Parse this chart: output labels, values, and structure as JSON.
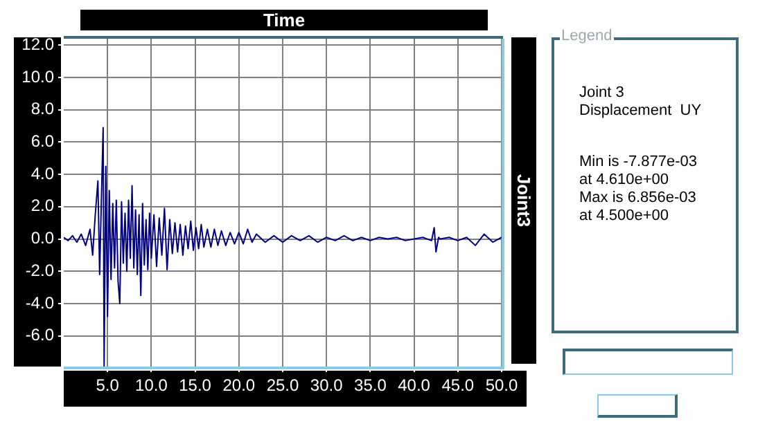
{
  "chart_data": {
    "type": "line",
    "xlabel": "Time",
    "ylabel": "Joint3",
    "xlim": [
      0,
      50
    ],
    "ylim": [
      -7.9,
      12.4
    ],
    "xticks": [
      {
        "value": 5,
        "label": "5.0"
      },
      {
        "value": 10,
        "label": "10.0"
      },
      {
        "value": 15,
        "label": "15.0"
      },
      {
        "value": 20,
        "label": "20.0"
      },
      {
        "value": 25,
        "label": "25.0"
      },
      {
        "value": 30,
        "label": "30.0"
      },
      {
        "value": 35,
        "label": "35.0"
      },
      {
        "value": 40,
        "label": "40.0"
      },
      {
        "value": 45,
        "label": "45.0"
      },
      {
        "value": 50,
        "label": "50.0"
      }
    ],
    "yticks": [
      {
        "value": 12,
        "label": "12.0"
      },
      {
        "value": 10,
        "label": "10.0"
      },
      {
        "value": 8,
        "label": "8.0"
      },
      {
        "value": 6,
        "label": "6.0"
      },
      {
        "value": 4,
        "label": "4.0"
      },
      {
        "value": 2,
        "label": "2.0"
      },
      {
        "value": 0,
        "label": "0.0"
      },
      {
        "value": -2,
        "label": "-2.0"
      },
      {
        "value": -4,
        "label": "-4.0"
      },
      {
        "value": -6,
        "label": "-6.0"
      }
    ],
    "grid": true,
    "marker": "none",
    "line_style": "solid",
    "legend": false,
    "annotations": [
      "Legend",
      "Joint 3",
      "Displacement  UY",
      "Min is -7.877e-03",
      "at 4.610e+00",
      "Max is 6.856e-03",
      "at 4.500e+00"
    ],
    "series": [
      {
        "color": "#000080",
        "x": [
          0,
          0.5,
          1,
          1.5,
          2,
          2.5,
          3,
          3.3,
          3.6,
          3.9,
          4.1,
          4.3,
          4.5,
          4.61,
          4.8,
          5.0,
          5.2,
          5.4,
          5.6,
          5.8,
          6.0,
          6.2,
          6.4,
          6.6,
          6.8,
          7.0,
          7.2,
          7.4,
          7.6,
          7.8,
          8.0,
          8.2,
          8.4,
          8.6,
          8.8,
          9.0,
          9.2,
          9.4,
          9.6,
          9.8,
          10.0,
          10.3,
          10.6,
          10.9,
          11.2,
          11.5,
          11.8,
          12.1,
          12.4,
          12.7,
          13.0,
          13.3,
          13.6,
          13.9,
          14.2,
          14.5,
          14.8,
          15.1,
          15.4,
          15.7,
          16.0,
          16.4,
          16.8,
          17.2,
          17.6,
          18.0,
          18.5,
          19,
          19.5,
          20,
          20.5,
          21,
          21.5,
          22,
          23,
          24,
          25,
          26,
          27,
          28,
          29,
          30,
          31,
          32,
          33,
          34,
          35,
          36,
          37,
          38,
          39,
          40,
          41,
          42,
          42.3,
          42.5,
          42.8,
          43,
          44,
          45,
          46,
          47,
          48,
          49,
          50
        ],
        "values": [
          0.1,
          -0.1,
          0.2,
          -0.2,
          0.3,
          -0.4,
          0.6,
          -1.0,
          1.5,
          3.6,
          -2.2,
          2.5,
          6.9,
          -7.9,
          4.5,
          -4.8,
          3.0,
          -2.5,
          2.2,
          -1.8,
          2.4,
          -2.6,
          -4.0,
          2.3,
          -1.5,
          1.6,
          -2.0,
          2.4,
          -1.2,
          3.3,
          -1.8,
          1.8,
          -2.2,
          1.5,
          -3.5,
          2.2,
          -1.6,
          1.2,
          -1.9,
          1.6,
          -1.2,
          1.5,
          -1.7,
          1.3,
          -1.0,
          1.9,
          -1.9,
          1.2,
          -0.9,
          1.0,
          -0.8,
          0.9,
          -1.0,
          0.8,
          -0.6,
          1.1,
          -0.7,
          0.7,
          -0.6,
          0.9,
          -0.5,
          0.6,
          -0.5,
          0.6,
          -0.4,
          0.5,
          -0.4,
          0.4,
          -0.3,
          0.4,
          -0.3,
          0.6,
          -0.2,
          0.3,
          -0.2,
          0.2,
          -0.2,
          0.2,
          -0.1,
          0.2,
          -0.2,
          0.1,
          -0.1,
          0.2,
          -0.1,
          0.1,
          -0.1,
          0.1,
          0.0,
          0.1,
          -0.1,
          0.0,
          0.1,
          -0.1,
          0.7,
          -0.8,
          0.1,
          0.0,
          0.1,
          -0.1,
          0.1,
          -0.4,
          0.3,
          -0.2,
          0.1
        ]
      }
    ]
  }
}
